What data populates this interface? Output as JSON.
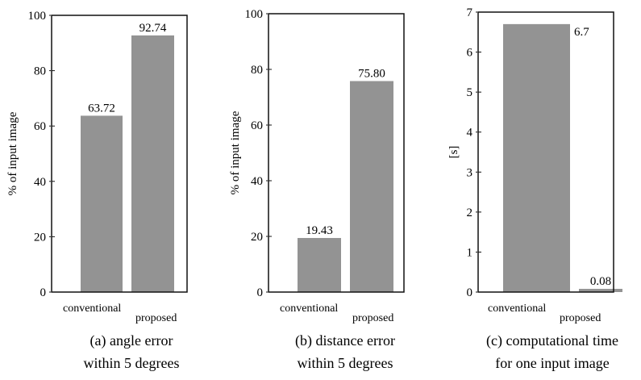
{
  "chart_data": [
    {
      "type": "bar",
      "caption_line1": "(a) angle error",
      "caption_line2": "within 5 degrees",
      "ylabel": "% of input image",
      "categories": [
        "conventional",
        "proposed"
      ],
      "values": [
        63.72,
        92.74
      ],
      "value_labels": [
        "63.72",
        "92.74"
      ],
      "ylim": [
        0,
        100
      ],
      "yticks": [
        "0",
        "20",
        "40",
        "60",
        "80",
        "100"
      ],
      "grid": false,
      "bar_color": "#939393"
    },
    {
      "type": "bar",
      "caption_line1": "(b) distance error",
      "caption_line2": "within 5 degrees",
      "ylabel": "% of input image",
      "categories": [
        "conventional",
        "proposed"
      ],
      "values": [
        19.43,
        75.8
      ],
      "value_labels": [
        "19.43",
        "75.80"
      ],
      "ylim": [
        0,
        100
      ],
      "yticks": [
        "0",
        "20",
        "40",
        "60",
        "80",
        "100"
      ],
      "grid": false,
      "bar_color": "#939393"
    },
    {
      "type": "bar",
      "caption_line1": "(c) computational time",
      "caption_line2": "for one input image",
      "ylabel": "[s]",
      "categories": [
        "conventional",
        "proposed"
      ],
      "values": [
        6.7,
        0.08
      ],
      "value_labels": [
        "6.7",
        "0.08"
      ],
      "ylim": [
        0,
        7
      ],
      "yticks": [
        "0",
        "1",
        "2",
        "3",
        "4",
        "5",
        "6",
        "7"
      ],
      "grid": false,
      "bar_color": "#939393"
    }
  ]
}
